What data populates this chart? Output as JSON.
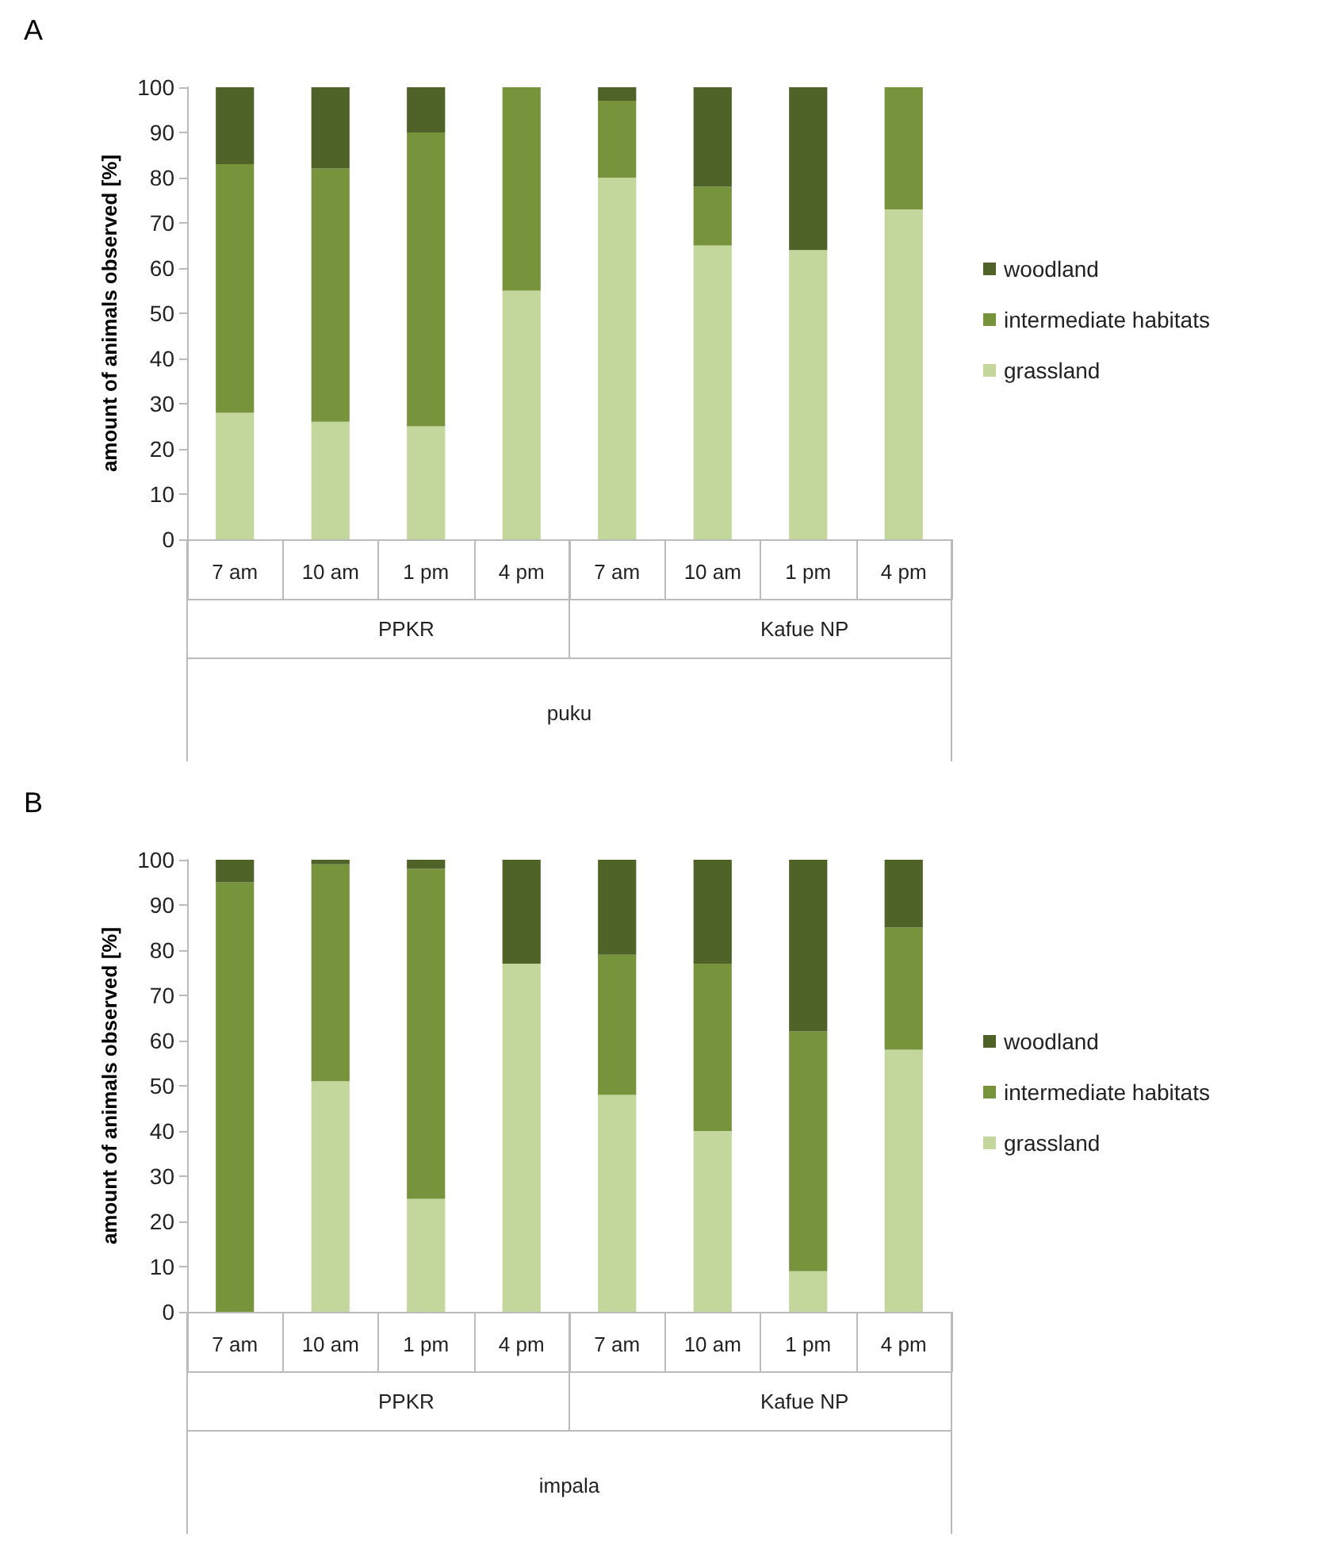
{
  "chart_data": [
    {
      "type": "bar",
      "title": "A",
      "ylabel": "amount of animals observed [%]",
      "xlabel": "puku",
      "annotations": [
        "PPKR",
        "Kafue NP"
      ],
      "categories": [
        "7 am",
        "10 am",
        "1 pm",
        "4 pm",
        "7 am",
        "10 am",
        "1 pm",
        "4 pm"
      ],
      "stacked": true,
      "legend": "right",
      "grid": false,
      "ylim": [
        0,
        100
      ],
      "yticks": [
        0,
        10,
        20,
        30,
        40,
        50,
        60,
        70,
        80,
        90,
        100
      ],
      "series": [
        {
          "name": "grassland",
          "color": "#c3d69b",
          "values": [
            28,
            26,
            25,
            55,
            80,
            65,
            64,
            73
          ]
        },
        {
          "name": "intermediate habitats",
          "color": "#77933c",
          "values": [
            55,
            56,
            65,
            45,
            17,
            13,
            0,
            27
          ]
        },
        {
          "name": "woodland",
          "color": "#4f6228",
          "values": [
            17,
            18,
            10,
            0,
            3,
            22,
            36,
            0
          ]
        }
      ]
    },
    {
      "type": "bar",
      "title": "B",
      "ylabel": "amount of animals observed [%]",
      "xlabel": "impala",
      "annotations": [
        "PPKR",
        "Kafue NP"
      ],
      "categories": [
        "7 am",
        "10 am",
        "1 pm",
        "4 pm",
        "7 am",
        "10 am",
        "1 pm",
        "4 pm"
      ],
      "stacked": true,
      "legend": "right",
      "grid": false,
      "ylim": [
        0,
        100
      ],
      "yticks": [
        0,
        10,
        20,
        30,
        40,
        50,
        60,
        70,
        80,
        90,
        100
      ],
      "series": [
        {
          "name": "grassland",
          "color": "#c3d69b",
          "values": [
            0,
            51,
            25,
            77,
            48,
            40,
            9,
            58
          ]
        },
        {
          "name": "intermediate habitats",
          "color": "#77933c",
          "values": [
            95,
            48,
            73,
            0,
            31,
            37,
            53,
            27
          ]
        },
        {
          "name": "woodland",
          "color": "#4f6228",
          "values": [
            5,
            1,
            2,
            23,
            21,
            23,
            38,
            15
          ]
        }
      ]
    }
  ]
}
